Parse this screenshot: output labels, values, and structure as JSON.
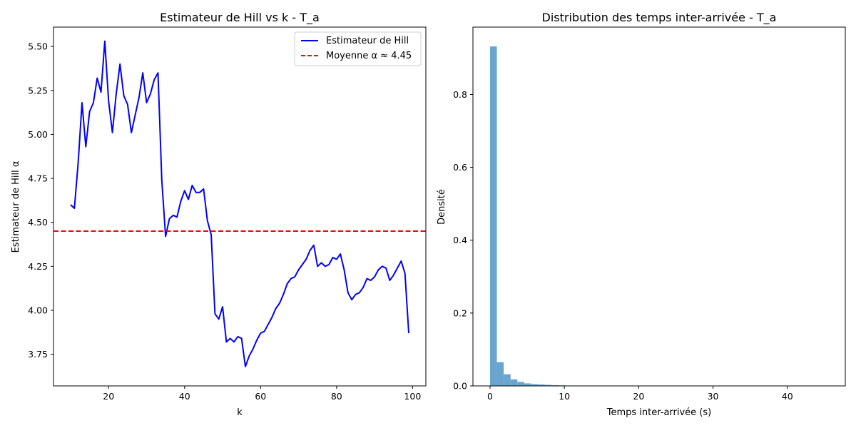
{
  "chart_data": [
    {
      "type": "line",
      "title": "Estimateur de Hill vs k - T_a",
      "xlabel": "k",
      "ylabel": "Estimateur de Hill α",
      "xlim": [
        5.5,
        103.5
      ],
      "ylim": [
        3.57,
        5.61
      ],
      "xticks": [
        20,
        40,
        60,
        80,
        100
      ],
      "yticks": [
        3.75,
        4.0,
        4.25,
        4.5,
        4.75,
        5.0,
        5.25,
        5.5
      ],
      "ytick_labels": [
        "3.75",
        "4.00",
        "4.25",
        "4.50",
        "4.75",
        "5.00",
        "5.25",
        "5.50"
      ],
      "legend_position": "top-right",
      "series": [
        {
          "name": "Estimateur de Hill",
          "color": "#0000ff",
          "style": "solid",
          "x": [
            10,
            11,
            12,
            13,
            14,
            15,
            16,
            17,
            18,
            19,
            20,
            21,
            22,
            23,
            24,
            25,
            26,
            27,
            28,
            29,
            30,
            31,
            32,
            33,
            34,
            35,
            36,
            37,
            38,
            39,
            40,
            41,
            42,
            43,
            44,
            45,
            46,
            47,
            48,
            49,
            50,
            51,
            52,
            53,
            54,
            55,
            56,
            57,
            58,
            59,
            60,
            61,
            62,
            63,
            64,
            65,
            66,
            67,
            68,
            69,
            70,
            71,
            72,
            73,
            74,
            75,
            76,
            77,
            78,
            79,
            80,
            81,
            82,
            83,
            84,
            85,
            86,
            87,
            88,
            89,
            90,
            91,
            92,
            93,
            94,
            95,
            96,
            97,
            98,
            99
          ],
          "y": [
            4.6,
            4.58,
            4.84,
            5.18,
            4.93,
            5.13,
            5.18,
            5.32,
            5.24,
            5.53,
            5.19,
            5.01,
            5.23,
            5.4,
            5.22,
            5.17,
            5.01,
            5.11,
            5.21,
            5.35,
            5.18,
            5.23,
            5.31,
            5.35,
            4.74,
            4.42,
            4.52,
            4.54,
            4.53,
            4.62,
            4.68,
            4.63,
            4.71,
            4.67,
            4.67,
            4.69,
            4.51,
            4.43,
            3.98,
            3.95,
            4.02,
            3.82,
            3.84,
            3.82,
            3.85,
            3.84,
            3.68,
            3.74,
            3.78,
            3.83,
            3.87,
            3.88,
            3.92,
            3.96,
            4.01,
            4.04,
            4.09,
            4.15,
            4.18,
            4.19,
            4.23,
            4.26,
            4.29,
            4.34,
            4.37,
            4.25,
            4.27,
            4.25,
            4.26,
            4.3,
            4.29,
            4.32,
            4.23,
            4.1,
            4.06,
            4.09,
            4.1,
            4.13,
            4.18,
            4.17,
            4.19,
            4.23,
            4.25,
            4.24,
            4.17,
            4.2,
            4.24,
            4.28,
            4.21,
            3.87
          ]
        },
        {
          "name": "Moyenne α ≈ 4.45",
          "color": "#ff0000",
          "style": "dashed",
          "hline": 4.45
        }
      ]
    },
    {
      "type": "bar",
      "title": "Distribution des temps inter-arrivée - T_a",
      "xlabel": "Temps inter-arrivée (s)",
      "ylabel": "Densité",
      "xlim": [
        -2.3,
        47.8
      ],
      "ylim": [
        0,
        0.985
      ],
      "xticks": [
        0,
        10,
        20,
        30,
        40
      ],
      "yticks": [
        0.0,
        0.2,
        0.4,
        0.6,
        0.8
      ],
      "ytick_labels": [
        "0.0",
        "0.2",
        "0.4",
        "0.6",
        "0.8"
      ],
      "bar_color": "#6aa5d0",
      "bin_width": 0.92,
      "bin_start": 0,
      "values": [
        0.932,
        0.065,
        0.032,
        0.018,
        0.011,
        0.007,
        0.005,
        0.004,
        0.003,
        0.002,
        0.0015,
        0.001,
        0.0008,
        0.0006,
        0.0005,
        0.0004,
        0.0003,
        0.0003,
        0.0002,
        0.0002,
        0.0002,
        0.0001,
        0.0001,
        0.0001,
        0.0001,
        0.0001,
        0.0001,
        0.0001,
        0.0001,
        0.0001,
        0.0001,
        0.0001,
        0.0001,
        0.0001,
        0.0001,
        0.0001,
        0.0001,
        0.0001,
        0.0001,
        0.0001,
        0.0001,
        0.0001,
        0.0001,
        0.0001,
        0.0001,
        0.0001,
        0.0001,
        0.0001,
        0.0001,
        0.0001
      ]
    }
  ]
}
